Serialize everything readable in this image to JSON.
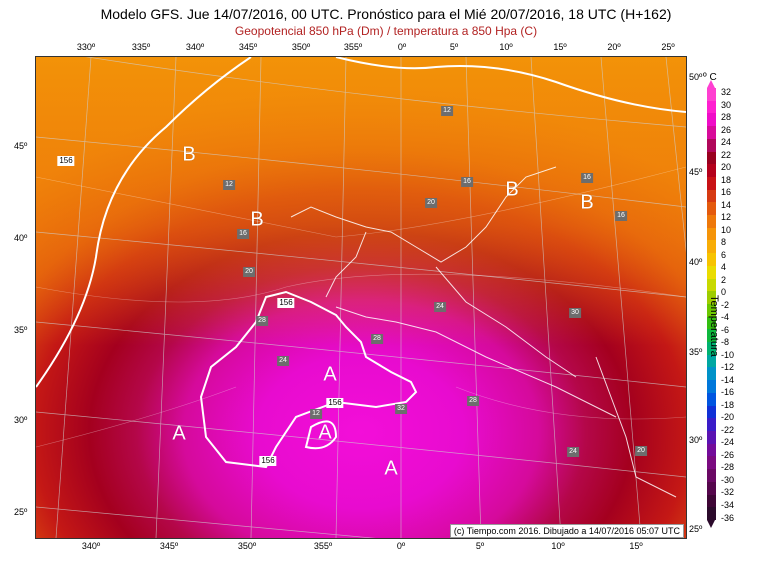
{
  "header": {
    "title": "Modelo GFS. Jue 14/07/2016, 00 UTC. Pronóstico para el Mié 20/07/2016, 18 UTC (H+162)",
    "subtitle": "Geopotencial 850 hPa (Dm) / temperatura a 850 Hpa (C)"
  },
  "axes": {
    "top_lon": [
      "330º",
      "335º",
      "340º",
      "345º",
      "350º",
      "355º",
      "0º",
      "5º",
      "10º",
      "15º",
      "20º",
      "25º"
    ],
    "bottom_lon": [
      "340º",
      "345º",
      "350º",
      "355º",
      "0º",
      "5º",
      "10º",
      "15º"
    ],
    "left_lat": [
      "45º",
      "40º",
      "35º",
      "30º",
      "25º"
    ],
    "right_lat": [
      "50º",
      "45º",
      "40º",
      "35º",
      "30º",
      "25º"
    ]
  },
  "colorbar": {
    "unit": "C",
    "title": "Temperatura",
    "ticks": [
      "32",
      "30",
      "28",
      "26",
      "24",
      "22",
      "20",
      "18",
      "16",
      "14",
      "12",
      "10",
      "8",
      "6",
      "4",
      "2",
      "0",
      "-2",
      "-4",
      "-6",
      "-8",
      "-10",
      "-12",
      "-14",
      "-16",
      "-18",
      "-20",
      "-22",
      "-24",
      "-26",
      "-28",
      "-30",
      "-32",
      "-34",
      "-36"
    ],
    "colors": [
      "#ff3fd1",
      "#ff1fd0",
      "#f00cc8",
      "#d80a9a",
      "#b0075a",
      "#99001f",
      "#b4001c",
      "#c81216",
      "#d63a12",
      "#e45a0d",
      "#ee780a",
      "#f59408",
      "#f8ad06",
      "#f7c300",
      "#eadc00",
      "#c8d900",
      "#9ecd00",
      "#6cc800",
      "#33bf10",
      "#0fb83e",
      "#00b270",
      "#00a7a2",
      "#0092c8",
      "#0077da",
      "#0055e0",
      "#1030d6",
      "#3a1cc8",
      "#5a13b2",
      "#730c9a",
      "#7a0a80",
      "#6a0864",
      "#55064c",
      "#3e0636",
      "#2b0a2b"
    ]
  },
  "highs_lows": [
    {
      "letter": "B"
    },
    {
      "letter": "B"
    },
    {
      "letter": "B"
    },
    {
      "letter": "B"
    },
    {
      "letter": "A"
    },
    {
      "letter": "A"
    },
    {
      "letter": "A"
    },
    {
      "letter": "A"
    }
  ],
  "isotherm_labels": [
    "12",
    "12",
    "16",
    "16",
    "20",
    "16",
    "20",
    "24",
    "28",
    "28",
    "24",
    "32",
    "28",
    "30",
    "24",
    "20",
    "16",
    "12"
  ],
  "geopotential_labels": [
    "156",
    "156",
    "156",
    "156"
  ],
  "copyright": "(c) Tiempo.com 2016. Dibujado a 14/07/2016 05:07 UTC"
}
